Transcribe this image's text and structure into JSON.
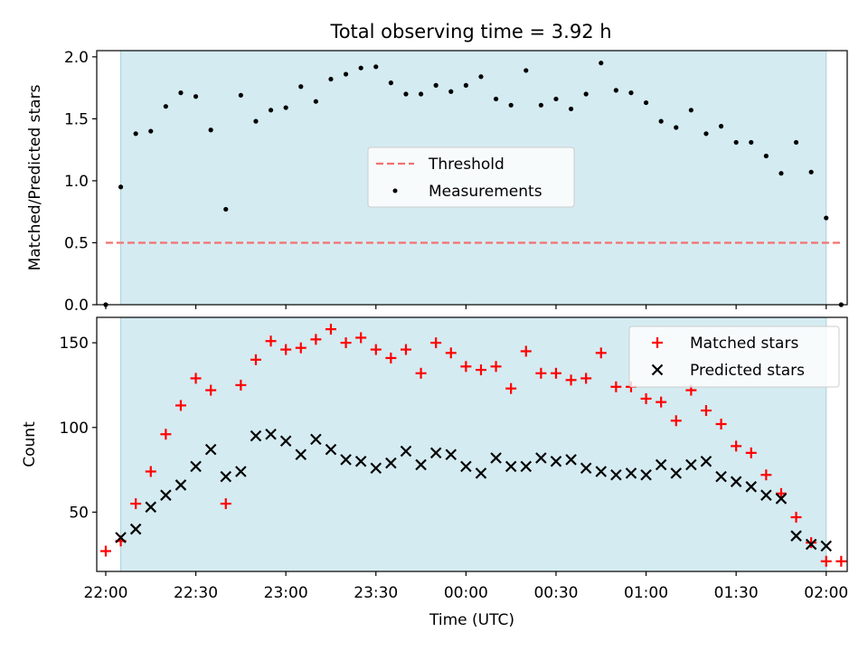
{
  "figure": {
    "title": "Total observing time = 3.92 h"
  },
  "chart_data": [
    {
      "type": "scatter",
      "panel": "top",
      "title": "Total observing time = 3.92 h",
      "ylabel": "Matched/Predicted stars",
      "xlabel": "",
      "ylim": [
        0,
        2.05
      ],
      "xlim": [
        "21:57",
        "02:07"
      ],
      "yticks": [
        0.0,
        0.5,
        1.0,
        1.5,
        2.0
      ],
      "ytick_labels": [
        "0.0",
        "0.5",
        "1.0",
        "1.5",
        "2.0"
      ],
      "observing_window": [
        "22:05",
        "02:00"
      ],
      "window_color": "#d4ebf1",
      "legend_position": "center",
      "threshold": {
        "name": "Threshold",
        "value": 0.5,
        "x_range": [
          "22:00",
          "02:05"
        ],
        "color": "#f47070"
      },
      "series": [
        {
          "name": "Measurements",
          "marker": "dot",
          "color": "#000000",
          "x": [
            "22:00",
            "22:05",
            "22:10",
            "22:15",
            "22:20",
            "22:25",
            "22:30",
            "22:35",
            "22:40",
            "22:45",
            "22:50",
            "22:55",
            "23:00",
            "23:05",
            "23:10",
            "23:15",
            "23:20",
            "23:25",
            "23:30",
            "23:35",
            "23:40",
            "23:45",
            "23:50",
            "23:55",
            "00:00",
            "00:05",
            "00:10",
            "00:15",
            "00:20",
            "00:25",
            "00:30",
            "00:35",
            "00:40",
            "00:45",
            "00:50",
            "00:55",
            "01:00",
            "01:05",
            "01:10",
            "01:15",
            "01:20",
            "01:25",
            "01:30",
            "01:35",
            "01:40",
            "01:45",
            "01:50",
            "01:55",
            "02:00",
            "02:05"
          ],
          "y": [
            0.0,
            0.95,
            1.38,
            1.4,
            1.6,
            1.71,
            1.68,
            1.41,
            0.77,
            1.69,
            1.48,
            1.57,
            1.59,
            1.76,
            1.64,
            1.82,
            1.86,
            1.91,
            1.92,
            1.79,
            1.7,
            1.7,
            1.77,
            1.72,
            1.77,
            1.84,
            1.66,
            1.61,
            1.89,
            1.61,
            1.66,
            1.58,
            1.7,
            1.95,
            1.73,
            1.71,
            1.63,
            1.48,
            1.43,
            1.57,
            1.38,
            1.44,
            1.31,
            1.31,
            1.2,
            1.06,
            1.31,
            1.07,
            0.7,
            0.0
          ]
        }
      ]
    },
    {
      "type": "scatter",
      "panel": "bottom",
      "ylabel": "Count",
      "xlabel": "Time (UTC)",
      "ylim": [
        15,
        165
      ],
      "xlim": [
        "21:57",
        "02:07"
      ],
      "yticks": [
        50,
        100,
        150
      ],
      "xticks": [
        "22:00",
        "22:30",
        "23:00",
        "23:30",
        "00:00",
        "00:30",
        "01:00",
        "01:30",
        "02:00"
      ],
      "observing_window": [
        "22:05",
        "02:00"
      ],
      "window_color": "#d4ebf1",
      "legend_position": "top-right",
      "x": [
        "22:00",
        "22:05",
        "22:10",
        "22:15",
        "22:20",
        "22:25",
        "22:30",
        "22:35",
        "22:40",
        "22:45",
        "22:50",
        "22:55",
        "23:00",
        "23:05",
        "23:10",
        "23:15",
        "23:20",
        "23:25",
        "23:30",
        "23:35",
        "23:40",
        "23:45",
        "23:50",
        "23:55",
        "00:00",
        "00:05",
        "00:10",
        "00:15",
        "00:20",
        "00:25",
        "00:30",
        "00:35",
        "00:40",
        "00:45",
        "00:50",
        "00:55",
        "01:00",
        "01:05",
        "01:10",
        "01:15",
        "01:20",
        "01:25",
        "01:30",
        "01:35",
        "01:40",
        "01:45",
        "01:50",
        "01:55",
        "02:00",
        "02:05"
      ],
      "series": [
        {
          "name": "Matched stars",
          "marker": "plus",
          "color": "#ff0000",
          "values": [
            27,
            33,
            55,
            74,
            96,
            113,
            129,
            122,
            55,
            125,
            140,
            151,
            146,
            147,
            152,
            158,
            150,
            153,
            146,
            141,
            146,
            132,
            150,
            144,
            136,
            134,
            136,
            123,
            145,
            132,
            132,
            128,
            129,
            144,
            124,
            124,
            117,
            115,
            104,
            122,
            110,
            102,
            89,
            85,
            72,
            61,
            47,
            32,
            21,
            21
          ]
        },
        {
          "name": "Predicted stars",
          "marker": "x",
          "color": "#000000",
          "values": [
            null,
            35,
            40,
            53,
            60,
            66,
            77,
            87,
            71,
            74,
            95,
            96,
            92,
            84,
            93,
            87,
            81,
            80,
            76,
            79,
            86,
            78,
            85,
            84,
            77,
            73,
            82,
            77,
            77,
            82,
            80,
            81,
            76,
            74,
            72,
            73,
            72,
            78,
            73,
            78,
            80,
            71,
            68,
            65,
            60,
            58,
            36,
            31,
            30,
            null
          ]
        }
      ]
    }
  ]
}
